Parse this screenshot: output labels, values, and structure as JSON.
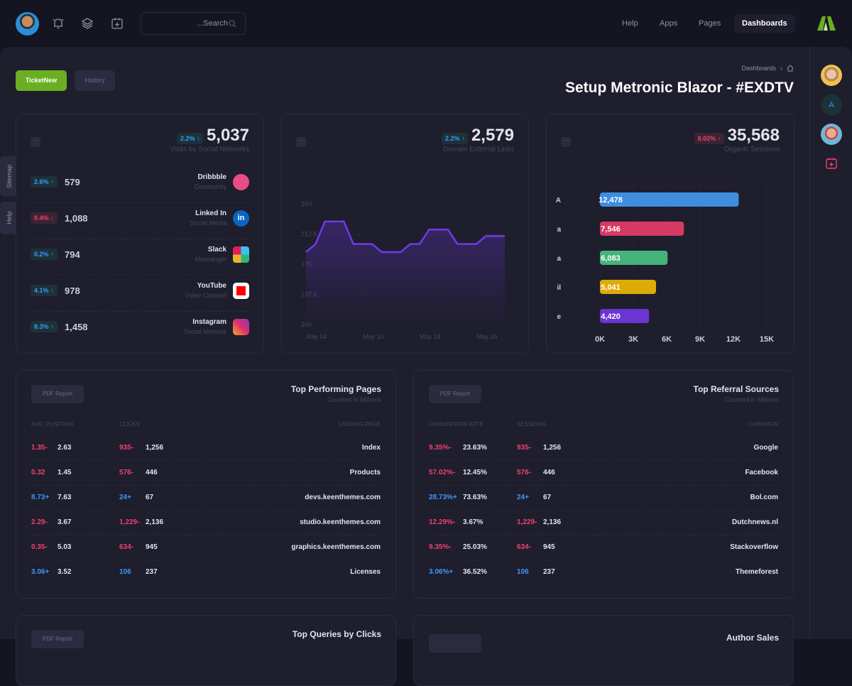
{
  "topbar": {
    "search_placeholder": "...Search",
    "nav": [
      "Help",
      "Apps",
      "Pages",
      "Dashboards"
    ],
    "active_nav": "Dashboards",
    "icons": [
      "bell-icon",
      "layers-icon",
      "calendar-add-icon",
      "search-icon"
    ]
  },
  "toolbar": {
    "ticket_new": "TicketNew",
    "history": "History"
  },
  "breadcrumb": {
    "item": "Dashboards"
  },
  "page_title": "Setup Metronic Blazor - #EXDTV",
  "side_tabs": [
    "Sitemap",
    "Help"
  ],
  "right_sidebar": {
    "avatar_letter": "A"
  },
  "colors": {
    "accent_green": "#6aaf23",
    "up": "#3e97ff",
    "down": "#f1416c",
    "line": "#7239ea"
  },
  "social": {
    "badge": "2.2%",
    "total": "5,037",
    "label": "Visits by Social Networks",
    "items": [
      {
        "change": "2.6%",
        "dir": "up",
        "value": "579",
        "name": "Dribbble",
        "desc": "Community",
        "icon": "dribbble-icon"
      },
      {
        "change": "0.4%",
        "dir": "down",
        "value": "1,088",
        "name": "Linked In",
        "desc": "Social Media",
        "icon": "linkedin-icon"
      },
      {
        "change": "0.2%",
        "dir": "up",
        "value": "794",
        "name": "Slack",
        "desc": "Messanger",
        "icon": "slack-icon"
      },
      {
        "change": "4.1%",
        "dir": "up",
        "value": "978",
        "name": "YouTube",
        "desc": "Video Channel",
        "icon": "youtube-icon"
      },
      {
        "change": "8.3%",
        "dir": "up",
        "value": "1,458",
        "name": "Instagram",
        "desc": "Social Network",
        "icon": "instagram-icon"
      }
    ]
  },
  "links": {
    "badge": "2.2%",
    "total": "2,579",
    "label": "Domain External Links"
  },
  "organic": {
    "badge": "8.02%",
    "total": "35,568",
    "label": "Organic Sessions"
  },
  "chart_data": [
    {
      "type": "area",
      "ylim": [
        100,
        250
      ],
      "yticks": [
        "250",
        "212.5",
        "175",
        "137.5",
        "100"
      ],
      "xticks": [
        "May 04",
        "May 10",
        "May 18",
        "May 26"
      ],
      "values": [
        190,
        200,
        228,
        228,
        228,
        200,
        200,
        200,
        190,
        190,
        190,
        200,
        200,
        218,
        218,
        218,
        200,
        200,
        200,
        210,
        210,
        210
      ],
      "grid": true
    },
    {
      "type": "bar",
      "orientation": "horizontal",
      "categories": [
        "A",
        "a",
        "a",
        "il",
        "e"
      ],
      "values": [
        12478,
        7546,
        6083,
        5041,
        4420
      ],
      "labels": [
        "12,478",
        "7,546",
        "6,083",
        "5,041",
        "4,420"
      ],
      "colors": [
        "#3e8ee0",
        "#d63a64",
        "#45b37b",
        "#ddab07",
        "#6a35d0"
      ],
      "xlim": [
        0,
        15000
      ],
      "xticks": [
        "0K",
        "3K",
        "6K",
        "9K",
        "12K",
        "15K"
      ],
      "grid": true
    }
  ],
  "pages_table": {
    "title": "Top Performing Pages",
    "subtitle": "Counted in Millions",
    "pdf": "PDF Report",
    "headers": [
      "Avg. Position",
      "Clicks",
      "Landing Page"
    ],
    "rows": [
      {
        "d1": "1.35-",
        "c1": "red",
        "v1": "2.63",
        "d2": "935-",
        "c2": "red",
        "v2": "1,256",
        "name": "Index"
      },
      {
        "d1": "0.32",
        "c1": "red",
        "v1": "1.45",
        "d2": "576-",
        "c2": "red",
        "v2": "446",
        "name": "Products"
      },
      {
        "d1": "8.73+",
        "c1": "blue",
        "v1": "7.63",
        "d2": "24+",
        "c2": "blue",
        "v2": "67",
        "name": "devs.keenthemes.com"
      },
      {
        "d1": "2.29-",
        "c1": "red",
        "v1": "3.67",
        "d2": "1,229-",
        "c2": "red",
        "v2": "2,136",
        "name": "studio.keenthemes.com"
      },
      {
        "d1": "0.35-",
        "c1": "red",
        "v1": "5.03",
        "d2": "634-",
        "c2": "red",
        "v2": "945",
        "name": "graphics.keenthemes.com"
      },
      {
        "d1": "3.06+",
        "c1": "blue",
        "v1": "3.52",
        "d2": "106",
        "c2": "blue",
        "v2": "237",
        "name": "Licenses"
      }
    ]
  },
  "referral_table": {
    "title": "Top Referral Sources",
    "subtitle": "Counted in Millions",
    "pdf": "PDF Report",
    "headers": [
      "Conversion Rate",
      "Sessions",
      "Campaign"
    ],
    "rows": [
      {
        "d1": "9.35%-",
        "c1": "red",
        "v1": "23.63%",
        "d2": "935-",
        "c2": "red",
        "v2": "1,256",
        "name": "Google"
      },
      {
        "d1": "57.02%-",
        "c1": "red",
        "v1": "12.45%",
        "d2": "576-",
        "c2": "red",
        "v2": "446",
        "name": "Facebook"
      },
      {
        "d1": "28.73%+",
        "c1": "blue",
        "v1": "73.63%",
        "d2": "24+",
        "c2": "blue",
        "v2": "67",
        "name": "Bol.com"
      },
      {
        "d1": "12.29%-",
        "c1": "red",
        "v1": "3.67%",
        "d2": "1,229-",
        "c2": "red",
        "v2": "2,136",
        "name": "Dutchnews.nl"
      },
      {
        "d1": "9.35%-",
        "c1": "red",
        "v1": "25.03%",
        "d2": "634-",
        "c2": "red",
        "v2": "945",
        "name": "Stackoverflow"
      },
      {
        "d1": "3.06%+",
        "c1": "blue",
        "v1": "36.52%",
        "d2": "106",
        "c2": "blue",
        "v2": "237",
        "name": "Themeforest"
      }
    ]
  },
  "bottom": {
    "queries_title": "Top Queries by Clicks",
    "queries_pdf": "PDF Report",
    "author_title": "Author Sales"
  }
}
